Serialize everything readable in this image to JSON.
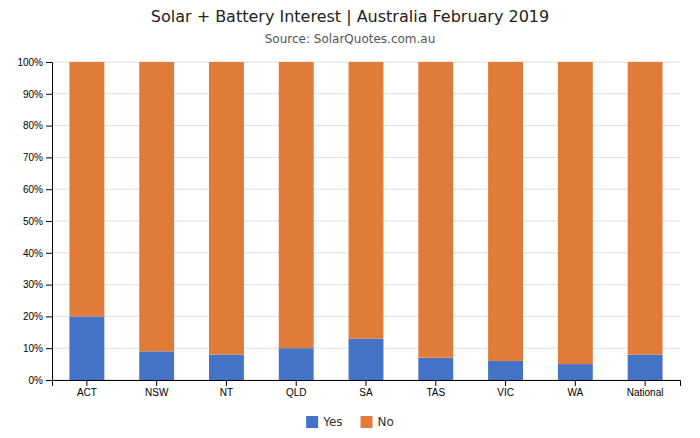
{
  "chart_data": {
    "type": "bar",
    "title": "Solar + Battery Interest  |  Australia February 2019",
    "subtitle": "Source: SolarQuotes.com.au",
    "categories": [
      "ACT",
      "NSW",
      "NT",
      "QLD",
      "SA",
      "TAS",
      "VIC",
      "WA",
      "National"
    ],
    "series": [
      {
        "name": "Yes",
        "color": "#4472c4",
        "values": [
          20,
          9,
          8,
          10,
          13,
          7,
          6,
          5,
          8
        ]
      },
      {
        "name": "No",
        "color": "#e07b39",
        "values": [
          80,
          91,
          92,
          90,
          87,
          93,
          94,
          95,
          92
        ]
      }
    ],
    "stacked": true,
    "ylim": [
      0,
      100
    ],
    "yticks": [
      {
        "value": 0,
        "label": "0%"
      },
      {
        "value": 10,
        "label": "10%"
      },
      {
        "value": 20,
        "label": "20%"
      },
      {
        "value": 30,
        "label": "30%"
      },
      {
        "value": 40,
        "label": "40%"
      },
      {
        "value": 50,
        "label": "50%"
      },
      {
        "value": 60,
        "label": "60%"
      },
      {
        "value": 70,
        "label": "70%"
      },
      {
        "value": 80,
        "label": "80%"
      },
      {
        "value": 90,
        "label": "90%"
      },
      {
        "value": 100,
        "label": "100%"
      }
    ],
    "grid": true,
    "legend": "bottom"
  }
}
